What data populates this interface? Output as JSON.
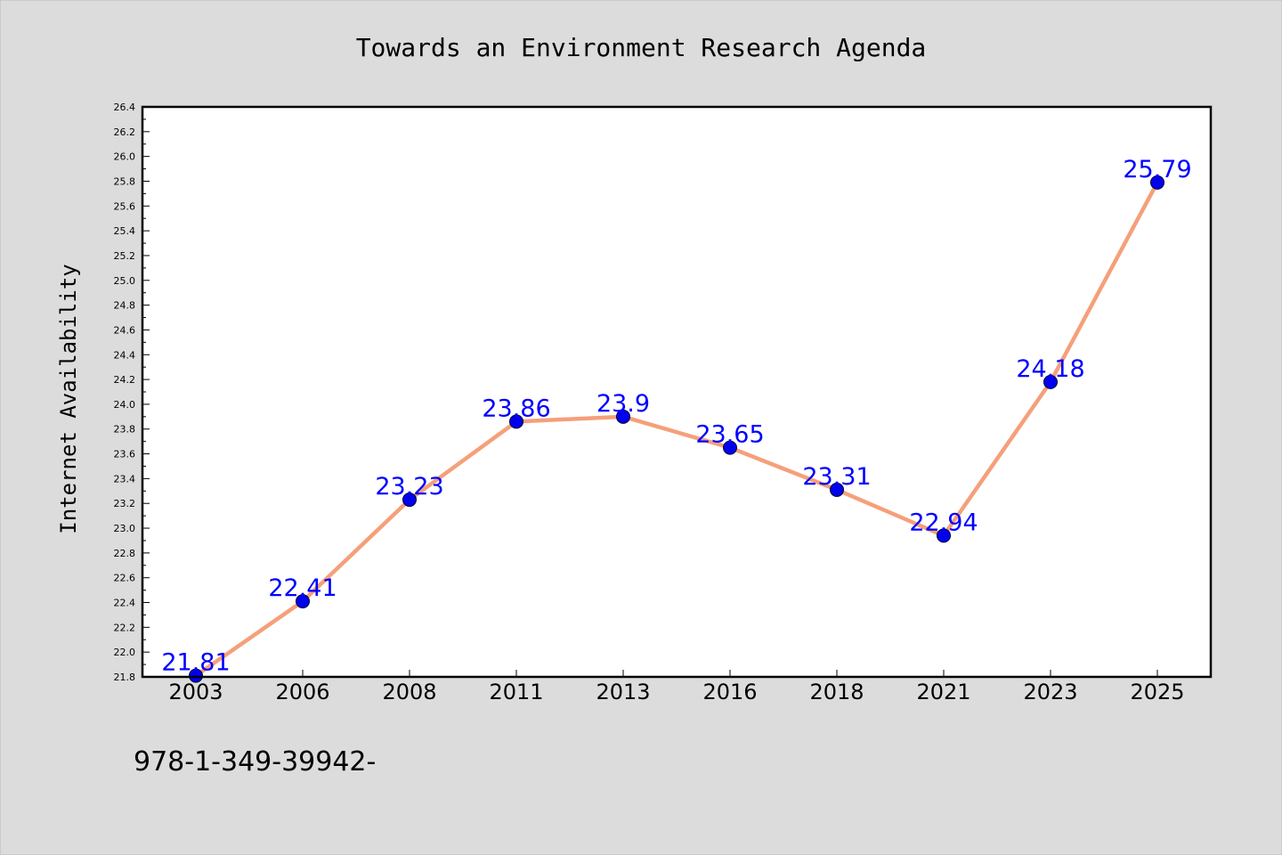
{
  "figure": {
    "footer_text": "978-1-349-39942-",
    "colors": {
      "background": "#dcdcdc",
      "plot_background": "#ffffff",
      "axis": "#000000",
      "line": "#f5a07a",
      "marker": "#0000ee",
      "label": "#0000ff"
    }
  },
  "chart_data": {
    "type": "line",
    "title": "Towards an Environment Research Agenda",
    "xlabel": "",
    "ylabel": "Internet Availability",
    "categories": [
      "2003",
      "2006",
      "2008",
      "2011",
      "2013",
      "2016",
      "2018",
      "2021",
      "2023",
      "2025"
    ],
    "series": [
      {
        "values": [
          21.81,
          22.41,
          23.23,
          23.86,
          23.9,
          23.65,
          23.31,
          22.94,
          24.18,
          25.79
        ],
        "data_labels": [
          "21.81",
          "22.41",
          "23.23",
          "23.86",
          "23.9",
          "23.65",
          "23.31",
          "22.94",
          "24.18",
          "25.79"
        ]
      }
    ],
    "ylim": [
      21.8,
      26.4
    ],
    "yticks": [
      "21.8",
      "22.0",
      "22.2",
      "22.4",
      "22.6",
      "22.8",
      "23.0",
      "23.2",
      "23.4",
      "23.6",
      "23.8",
      "24.0",
      "24.2",
      "24.4",
      "24.6",
      "24.8",
      "25.0",
      "25.2",
      "25.4",
      "25.6",
      "25.8",
      "26.0",
      "26.2",
      "26.4"
    ],
    "grid": false,
    "legend": "none"
  }
}
